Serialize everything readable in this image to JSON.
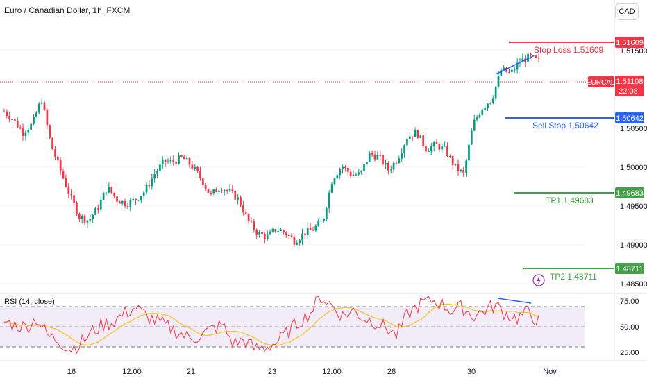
{
  "header": {
    "symbol_title": "Euro / Canadian Dollar, 1h, FXCM",
    "currency_button": "CAD"
  },
  "colors": {
    "up": "#089981",
    "down": "#f23645",
    "stop_loss": "#f23645",
    "sell_stop": "#2962ff",
    "take_profit": "#43a047",
    "rsi_line": "#f23645",
    "rsi_ma": "#f7c320",
    "rsi_band": "#ede7f6",
    "divergence": "#2962ff",
    "axis_text": "#131722"
  },
  "price_axis": {
    "ticks": [
      "1.51500",
      "1.51000",
      "1.50500",
      "1.50000",
      "1.49500",
      "1.49000",
      "1.48500"
    ]
  },
  "levels": [
    {
      "id": "stop-loss",
      "label": "Stop Loss 1.51609",
      "value": "1.51609",
      "price": 1.51609,
      "color": "#f23645"
    },
    {
      "id": "sell-stop",
      "label": "Sell Stop 1.50642",
      "value": "1.50642",
      "price": 1.50642,
      "color": "#2962ff"
    },
    {
      "id": "tp1",
      "label": "TP1 1.49683",
      "value": "1.49683",
      "price": 1.49683,
      "color": "#43a047"
    },
    {
      "id": "tp2",
      "label": "TP2 1.48711",
      "value": "1.48711",
      "price": 1.48711,
      "color": "#43a047"
    }
  ],
  "current_price": {
    "symbol": "EURCAD",
    "value": "1.51108",
    "countdown": "22:08",
    "price": 1.51108
  },
  "rsi": {
    "title": "RSI (14, close)",
    "ticks": [
      "75.00",
      "50.00",
      "25.00"
    ],
    "upper": 70,
    "middle": 50,
    "lower": 30
  },
  "time_axis": {
    "labels": [
      "16",
      "12:00",
      "21",
      "23",
      "12:00",
      "28",
      "30",
      "Nov"
    ]
  },
  "chart_data": {
    "type": "candlestick",
    "title": "Euro / Canadian Dollar, 1h, FXCM",
    "ylim": [
      1.4843,
      1.5193
    ],
    "close_anchors": [
      1.506,
      1.505,
      1.5035,
      1.5045,
      1.5075,
      1.502,
      1.499,
      1.496,
      1.4935,
      1.493,
      1.4945,
      1.497,
      1.4955,
      1.495,
      1.4955,
      1.4965,
      1.4985,
      1.5,
      1.5,
      1.5005,
      1.4995,
      1.498,
      1.496,
      1.497,
      1.4965,
      1.4955,
      1.493,
      1.4915,
      1.491,
      1.492,
      1.4915,
      1.4905,
      1.4915,
      1.492,
      1.493,
      1.498,
      1.4995,
      1.4985,
      1.4985,
      1.501,
      1.5005,
      1.499,
      1.5005,
      1.503,
      1.5035,
      1.5015,
      1.502,
      1.5015,
      1.4995,
      1.4985,
      1.5045,
      1.5065,
      1.5075,
      1.511,
      1.5105,
      1.512,
      1.5125,
      1.512
    ],
    "rsi_anchors": [
      55,
      52,
      50,
      58,
      42,
      38,
      30,
      35,
      45,
      52,
      55,
      62,
      68,
      60,
      55,
      50,
      45,
      40,
      42,
      48,
      52,
      35,
      38,
      30,
      32,
      36,
      45,
      55,
      62,
      78,
      70,
      60,
      65,
      58,
      55,
      50,
      42,
      62,
      70,
      75,
      72,
      65,
      68,
      60,
      65,
      70,
      62,
      58,
      64,
      55
    ],
    "rsi_ylim": [
      20,
      80
    ],
    "annotations": [
      "Stop Loss 1.51609",
      "Sell Stop 1.50642",
      "TP1 1.49683",
      "TP2 1.48711"
    ]
  }
}
